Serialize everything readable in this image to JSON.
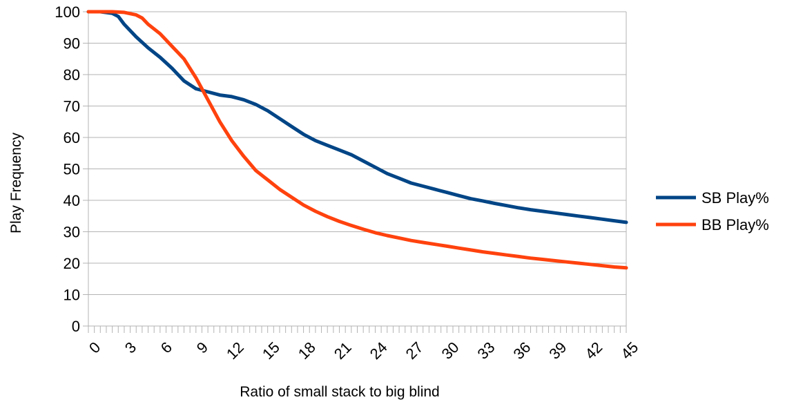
{
  "chart_data": {
    "type": "line",
    "title": "",
    "xlabel": "Ratio of small stack to big blind",
    "ylabel": "Play Frequency",
    "xlim": [
      0,
      45
    ],
    "ylim": [
      0,
      100
    ],
    "x_ticks": [
      "0",
      "3",
      "6",
      "9",
      "12",
      "15",
      "18",
      "21",
      "24",
      "27",
      "30",
      "33",
      "36",
      "39",
      "42",
      "45"
    ],
    "y_ticks": [
      "0",
      "10",
      "20",
      "30",
      "40",
      "50",
      "60",
      "70",
      "80",
      "90",
      "100"
    ],
    "grid": "horizontal",
    "legend_position": "right",
    "series": [
      {
        "name": "SB Play%",
        "color": "#004586",
        "points": [
          [
            0,
            100
          ],
          [
            1,
            100
          ],
          [
            2,
            99.5
          ],
          [
            2.5,
            98.5
          ],
          [
            3,
            96
          ],
          [
            4,
            92
          ],
          [
            5,
            88.5
          ],
          [
            6,
            85.5
          ],
          [
            7,
            82
          ],
          [
            8,
            78
          ],
          [
            9,
            75.5
          ],
          [
            10,
            74.5
          ],
          [
            11,
            73.5
          ],
          [
            12,
            73
          ],
          [
            13,
            72
          ],
          [
            14,
            70.5
          ],
          [
            15,
            68.5
          ],
          [
            16,
            66
          ],
          [
            17,
            63.5
          ],
          [
            18,
            61
          ],
          [
            19,
            59
          ],
          [
            20,
            57.5
          ],
          [
            21,
            56
          ],
          [
            22,
            54.5
          ],
          [
            23,
            52.5
          ],
          [
            24,
            50.5
          ],
          [
            25,
            48.5
          ],
          [
            26,
            47
          ],
          [
            27,
            45.5
          ],
          [
            28,
            44.5
          ],
          [
            29,
            43.5
          ],
          [
            30,
            42.5
          ],
          [
            31,
            41.5
          ],
          [
            32,
            40.5
          ],
          [
            33,
            39.8
          ],
          [
            34,
            39
          ],
          [
            35,
            38.3
          ],
          [
            36,
            37.6
          ],
          [
            37,
            37
          ],
          [
            38,
            36.5
          ],
          [
            39,
            36
          ],
          [
            40,
            35.5
          ],
          [
            41,
            35
          ],
          [
            42,
            34.5
          ],
          [
            43,
            34
          ],
          [
            44,
            33.5
          ],
          [
            45,
            33
          ]
        ]
      },
      {
        "name": "BB Play%",
        "color": "#ff420e",
        "points": [
          [
            0,
            100
          ],
          [
            1,
            100
          ],
          [
            2,
            100
          ],
          [
            3,
            99.8
          ],
          [
            4,
            99
          ],
          [
            4.5,
            98
          ],
          [
            5,
            96
          ],
          [
            6,
            93
          ],
          [
            7,
            89
          ],
          [
            8,
            85
          ],
          [
            9,
            79
          ],
          [
            10,
            72
          ],
          [
            11,
            65
          ],
          [
            12,
            59
          ],
          [
            13,
            54
          ],
          [
            14,
            49.5
          ],
          [
            15,
            46.5
          ],
          [
            16,
            43.5
          ],
          [
            17,
            41
          ],
          [
            18,
            38.5
          ],
          [
            19,
            36.5
          ],
          [
            20,
            34.8
          ],
          [
            21,
            33.3
          ],
          [
            22,
            32
          ],
          [
            23,
            30.8
          ],
          [
            24,
            29.7
          ],
          [
            25,
            28.8
          ],
          [
            26,
            28
          ],
          [
            27,
            27.2
          ],
          [
            28,
            26.6
          ],
          [
            29,
            26
          ],
          [
            30,
            25.4
          ],
          [
            31,
            24.8
          ],
          [
            32,
            24.2
          ],
          [
            33,
            23.6
          ],
          [
            34,
            23.1
          ],
          [
            35,
            22.6
          ],
          [
            36,
            22.1
          ],
          [
            37,
            21.6
          ],
          [
            38,
            21.2
          ],
          [
            39,
            20.8
          ],
          [
            40,
            20.4
          ],
          [
            41,
            20
          ],
          [
            42,
            19.6
          ],
          [
            43,
            19.2
          ],
          [
            44,
            18.8
          ],
          [
            45,
            18.5
          ]
        ]
      }
    ]
  }
}
